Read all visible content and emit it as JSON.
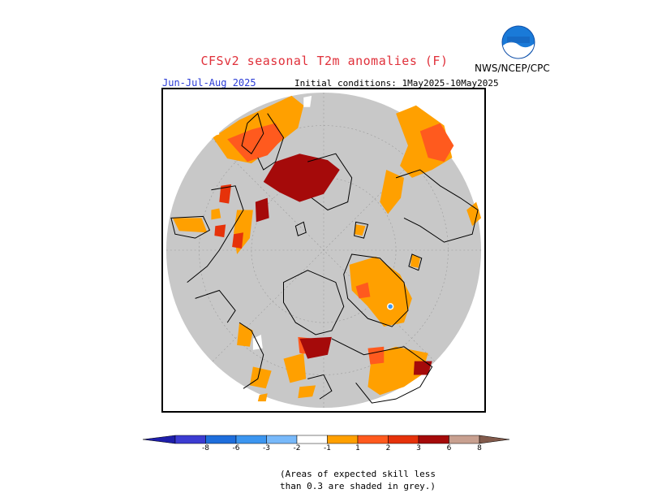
{
  "title": "CFSv2 seasonal T2m anomalies (F)",
  "agency": "NWS/NCEP/CPC",
  "logo_text": "NOAA",
  "season_label": "Jun-Jul-Aug 2025",
  "initial_conditions": "Initial conditions: 1May2025-10May2025",
  "colors": {
    "grey_low_skill": "#c8c8c8",
    "white": "#ffffff",
    "anom_1_2": "#ffa000",
    "anom_2_3": "#ff5a1e",
    "anom_3_6": "#e6320a",
    "anom_6_8": "#a50a0a",
    "coast": "#000000"
  },
  "legend": {
    "ticks": [
      "-8",
      "-6",
      "-3",
      "-2",
      "-1",
      "1",
      "2",
      "3",
      "6",
      "8"
    ],
    "colors": [
      "#1e1eaa",
      "#3c3cd2",
      "#1e6edc",
      "#3c96f0",
      "#78b9fa",
      "#ffffff",
      "#ffa000",
      "#ff5a1e",
      "#e6320a",
      "#a50a0a",
      "#c8a090",
      "#825a4b"
    ]
  },
  "note_line1": "(Areas of expected skill less",
  "note_line2": "than 0.3 are shaded in grey.)"
}
